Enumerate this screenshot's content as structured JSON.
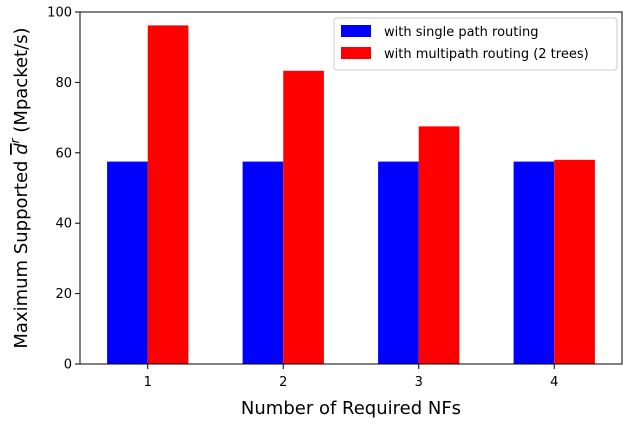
{
  "chart_data": {
    "type": "bar",
    "categories": [
      "1",
      "2",
      "3",
      "4"
    ],
    "series": [
      {
        "name": "with single path routing",
        "values": [
          57.5,
          57.5,
          57.5,
          57.5
        ],
        "color": "#0000ff"
      },
      {
        "name": "with multipath routing (2 trees)",
        "values": [
          96.2,
          83.3,
          67.5,
          58.0
        ],
        "color": "#ff0000"
      }
    ],
    "xlabel": "Number of Required NFs",
    "ylabel": {
      "prefix": "Maximum Supported ",
      "symbol": "d",
      "superscript": "r",
      "suffix": " (Mpacket/s)"
    },
    "ylim": [
      0,
      100
    ],
    "yticks": [
      0,
      20,
      40,
      60,
      80,
      100
    ],
    "grid": false,
    "legend_position": "top-right"
  }
}
